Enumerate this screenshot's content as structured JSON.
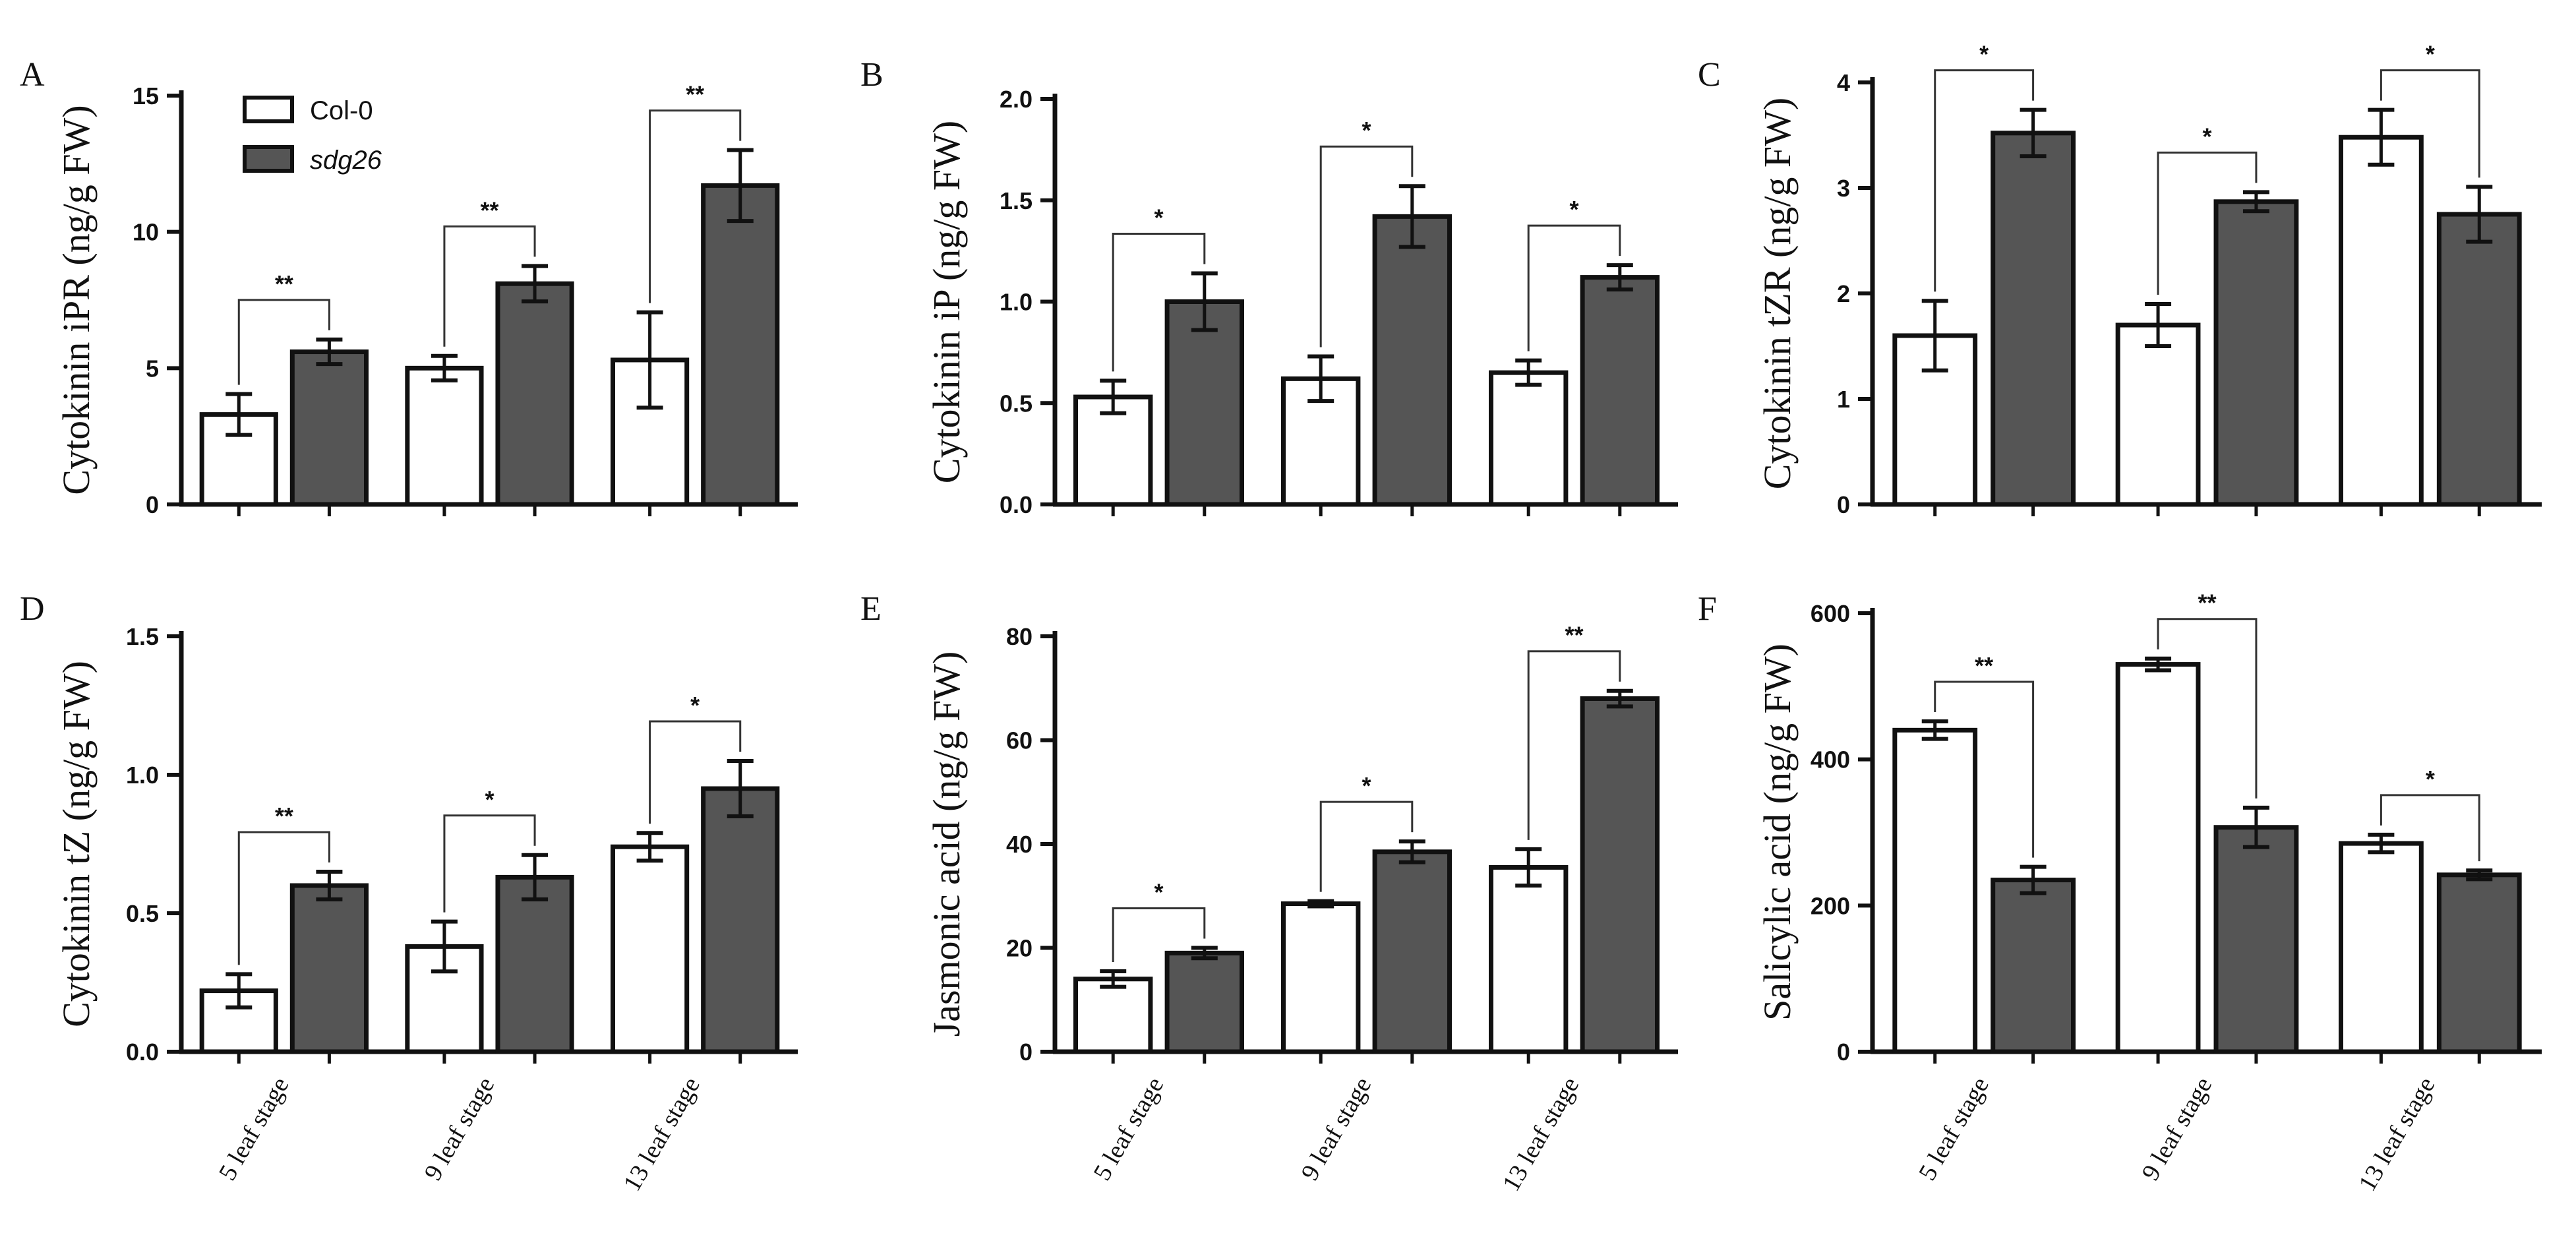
{
  "legend": {
    "entries": [
      {
        "name": "Col-0",
        "italic": false,
        "color": "#ffffff"
      },
      {
        "name": "sdg26",
        "italic": true,
        "color": "#555555"
      }
    ]
  },
  "chart_data": [
    {
      "type": "bar",
      "panel": "A",
      "ylabel": "Cytokinin  iPR (ng/g FW)",
      "ylim": [
        0,
        15
      ],
      "yticks": [
        0,
        5,
        10,
        15
      ],
      "ytick_labels": [
        "0",
        "5",
        "10",
        "15"
      ],
      "categories": [
        "5 leaf stage",
        "9 leaf stage",
        "13 leaf stage"
      ],
      "series": [
        {
          "name": "Col-0",
          "values": [
            3.3,
            5.0,
            5.3
          ],
          "errors": [
            0.75,
            0.45,
            1.75
          ]
        },
        {
          "name": "sdg26",
          "values": [
            5.6,
            8.1,
            11.7
          ],
          "errors": [
            0.45,
            0.65,
            1.3
          ]
        }
      ],
      "significance": [
        "**",
        "**",
        "**"
      ]
    },
    {
      "type": "bar",
      "panel": "B",
      "ylabel": "Cytokinin iP (ng/g FW)",
      "ylim": [
        0,
        2.0
      ],
      "yticks": [
        0,
        0.5,
        1.0,
        1.5,
        2.0
      ],
      "ytick_labels": [
        "0.0",
        "0.5",
        "1.0",
        "1.5",
        "2.0"
      ],
      "categories": [
        "5 leaf stage",
        "9 leaf stage",
        "13 leaf stage"
      ],
      "series": [
        {
          "name": "Col-0",
          "values": [
            0.53,
            0.62,
            0.65
          ],
          "errors": [
            0.08,
            0.11,
            0.06
          ]
        },
        {
          "name": "sdg26",
          "values": [
            1.0,
            1.42,
            1.12
          ],
          "errors": [
            0.14,
            0.15,
            0.06
          ]
        }
      ],
      "significance": [
        "*",
        "*",
        "*"
      ]
    },
    {
      "type": "bar",
      "panel": "C",
      "ylabel": "Cytokinin  tZR (ng/g FW)",
      "ylim": [
        0,
        4
      ],
      "yticks": [
        0,
        1,
        2,
        3,
        4
      ],
      "ytick_labels": [
        "0",
        "1",
        "2",
        "3",
        "4"
      ],
      "categories": [
        "5 leaf stage",
        "9 leaf stage",
        "13 leaf stage"
      ],
      "series": [
        {
          "name": "Col-0",
          "values": [
            1.6,
            1.7,
            3.48
          ],
          "errors": [
            0.33,
            0.2,
            0.26
          ]
        },
        {
          "name": "sdg26",
          "values": [
            3.52,
            2.87,
            2.75
          ],
          "errors": [
            0.22,
            0.09,
            0.26
          ]
        }
      ],
      "significance": [
        "*",
        "*",
        "*"
      ]
    },
    {
      "type": "bar",
      "panel": "D",
      "ylabel": "Cytokinin  tZ (ng/g FW)",
      "ylim": [
        0,
        1.5
      ],
      "yticks": [
        0,
        0.5,
        1.0,
        1.5
      ],
      "ytick_labels": [
        "0.0",
        "0.5",
        "1.0",
        "1.5"
      ],
      "categories": [
        "5 leaf stage",
        "9 leaf stage",
        "13 leaf stage"
      ],
      "series": [
        {
          "name": "Col-0",
          "values": [
            0.22,
            0.38,
            0.74
          ],
          "errors": [
            0.06,
            0.09,
            0.05
          ]
        },
        {
          "name": "sdg26",
          "values": [
            0.6,
            0.63,
            0.95
          ],
          "errors": [
            0.05,
            0.08,
            0.1
          ]
        }
      ],
      "significance": [
        "**",
        "*",
        "*"
      ]
    },
    {
      "type": "bar",
      "panel": "E",
      "ylabel": "Jasmonic  acid (ng/g FW)",
      "ylim": [
        0,
        80
      ],
      "yticks": [
        0,
        20,
        40,
        60,
        80
      ],
      "ytick_labels": [
        "0",
        "20",
        "40",
        "60",
        "80"
      ],
      "categories": [
        "5 leaf stage",
        "9 leaf stage",
        "13 leaf stage"
      ],
      "series": [
        {
          "name": "Col-0",
          "values": [
            14,
            28.5,
            35.5
          ],
          "errors": [
            1.5,
            0.5,
            3.5
          ]
        },
        {
          "name": "sdg26",
          "values": [
            19,
            38.5,
            68
          ],
          "errors": [
            1.0,
            2.0,
            1.5
          ]
        }
      ],
      "significance": [
        "*",
        "*",
        "**"
      ]
    },
    {
      "type": "bar",
      "panel": "F",
      "ylabel": "Salicylic  acid (ng/g FW)",
      "ylim": [
        0,
        600
      ],
      "yticks": [
        0,
        200,
        400,
        600
      ],
      "ytick_labels": [
        "0",
        "200",
        "400",
        "600"
      ],
      "categories": [
        "5 leaf stage",
        "9 leaf stage",
        "13 leaf stage"
      ],
      "series": [
        {
          "name": "Col-0",
          "values": [
            440,
            530,
            285
          ],
          "errors": [
            12,
            8,
            12
          ]
        },
        {
          "name": "sdg26",
          "values": [
            235,
            307,
            242
          ],
          "errors": [
            18,
            27,
            6
          ]
        }
      ],
      "significance": [
        "**",
        "**",
        "*"
      ]
    }
  ]
}
